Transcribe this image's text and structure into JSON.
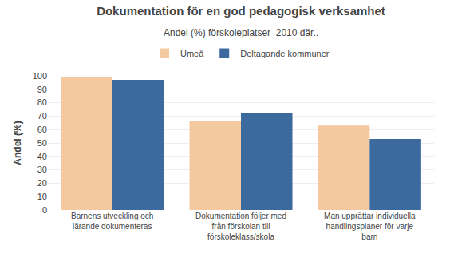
{
  "chart_data": {
    "type": "bar",
    "title": "Dokumentation för en god pedagogisk verksamhet",
    "subtitle": "Andel (%) förskoleplatser  2010 där..",
    "ylabel": "Andel (%)",
    "categories": [
      "Barnens utveckling och\nlärande dokumenteras",
      "Dokumentation följer med\nfrån förskolan till\nförskoleklass/skola",
      "Man upprättar individuella\nhandlingsplaner för varje\nbarn"
    ],
    "series": [
      {
        "name": "Umeå",
        "color": "#F5C9A0",
        "values": [
          99,
          66,
          63
        ]
      },
      {
        "name": "Deltagande kommuner",
        "color": "#3D6A9E",
        "values": [
          97,
          72,
          53
        ]
      }
    ],
    "ylim": [
      0,
      100
    ],
    "yticks": [
      0,
      10,
      20,
      30,
      40,
      50,
      60,
      70,
      80,
      90,
      100
    ],
    "grid": true,
    "legend": "top"
  }
}
